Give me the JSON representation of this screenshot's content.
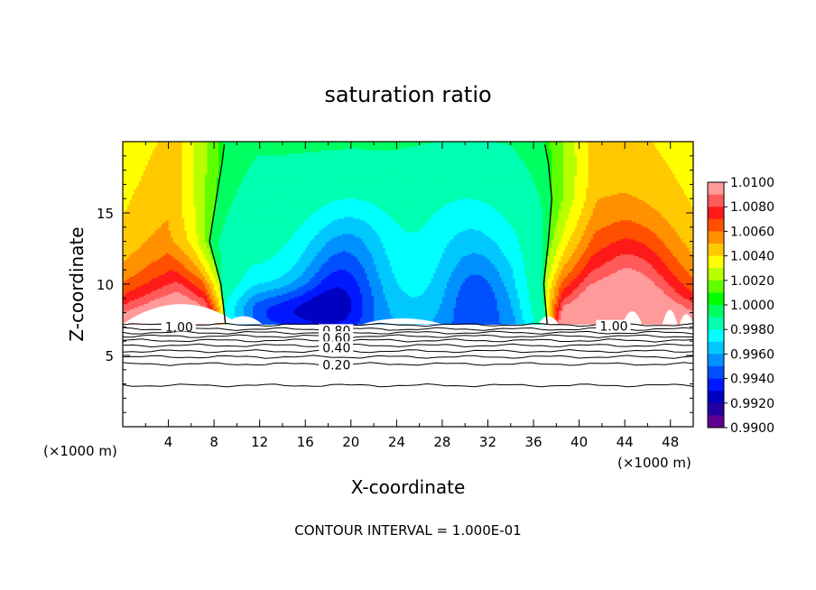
{
  "chart_data": {
    "type": "heatmap",
    "title": "saturation ratio",
    "xlabel": "X-coordinate",
    "ylabel": "Z-coordinate",
    "x_unit_left": "(×1000 m)",
    "x_unit_right": "(×1000 m)",
    "xlim": [
      0,
      50
    ],
    "ylim": [
      0,
      20
    ],
    "xticks": [
      4,
      8,
      12,
      16,
      20,
      24,
      28,
      32,
      36,
      40,
      44,
      48
    ],
    "yticks": [
      5,
      10,
      15
    ],
    "footer": "CONTOUR INTERVAL = 1.000E-01",
    "colorbar": {
      "min": 0.99,
      "max": 1.01,
      "labels": [
        "1.0100",
        "1.0080",
        "1.0060",
        "1.0040",
        "1.0020",
        "1.0000",
        "0.9980",
        "0.9960",
        "0.9940",
        "0.9920",
        "0.9900"
      ],
      "colors": [
        "#ff9a9a",
        "#ff5a5a",
        "#ff1a1a",
        "#ff5000",
        "#ff9000",
        "#ffc800",
        "#ffff00",
        "#b8ff00",
        "#60ff00",
        "#00ff00",
        "#00ff60",
        "#00ffb0",
        "#00ffff",
        "#00c8ff",
        "#0090ff",
        "#0050ff",
        "#0018ff",
        "#0000c0",
        "#2000a0",
        "#600090"
      ]
    },
    "cloud_base_z": 7.2,
    "left_boundary_x": [
      9.0,
      8.6,
      7.6,
      8.2,
      8.7,
      8.9
    ],
    "right_boundary_x": [
      37.2,
      36.9,
      37.3,
      37.6,
      37.3,
      37.0
    ],
    "boundary_z": [
      7.2,
      10,
      13,
      16,
      18.5,
      19.8
    ],
    "contour_levels": [
      {
        "value": 1.0,
        "label": "1.00"
      },
      {
        "value": 0.9,
        "label": ""
      },
      {
        "value": 0.8,
        "label": "0.80"
      },
      {
        "value": 0.7,
        "label": ""
      },
      {
        "value": 0.6,
        "label": "0.60"
      },
      {
        "value": 0.5,
        "label": ""
      },
      {
        "value": 0.4,
        "label": "0.40"
      },
      {
        "value": 0.3,
        "label": ""
      },
      {
        "value": 0.2,
        "label": "0.20"
      },
      {
        "value": 0.1,
        "label": ""
      }
    ],
    "contour_z": [
      7.15,
      6.85,
      6.6,
      6.35,
      6.05,
      5.7,
      5.3,
      4.9,
      4.4,
      2.9
    ],
    "contour_labels": [
      {
        "text": "1.00",
        "x": 3.7,
        "z": 7.0
      },
      {
        "text": "1.00",
        "x": 41.8,
        "z": 7.05
      },
      {
        "text": "0.80",
        "x": 17.5,
        "z": 6.75
      },
      {
        "text": "0.60",
        "x": 17.5,
        "z": 6.25
      },
      {
        "text": "0.40",
        "x": 17.5,
        "z": 5.55
      },
      {
        "text": "0.20",
        "x": 17.5,
        "z": 4.35
      }
    ]
  }
}
